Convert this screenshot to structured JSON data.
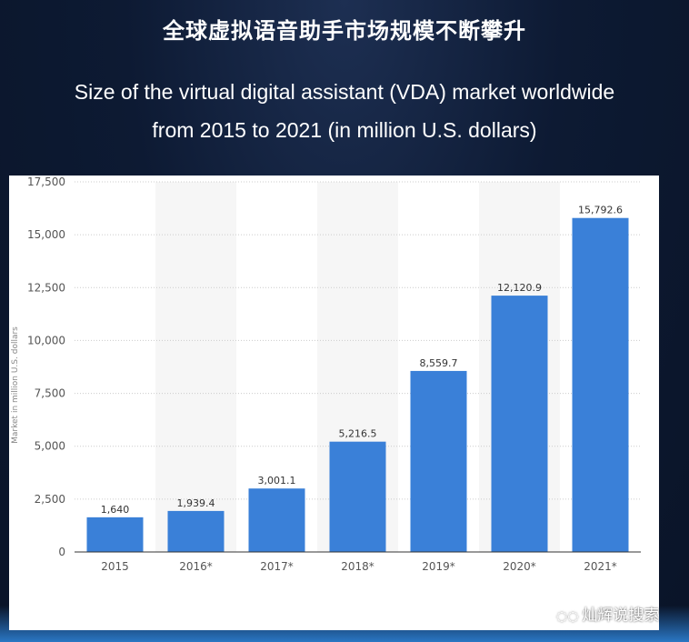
{
  "title_cn": "全球虚拟语音助手市场规模不断攀升",
  "title_en": "Size of the virtual digital assistant (VDA) market worldwide from 2015 to 2021 (in million U.S. dollars)",
  "watermark": "灿辉说搜索",
  "chart_data": {
    "type": "bar",
    "categories": [
      "2015",
      "2016*",
      "2017*",
      "2018*",
      "2019*",
      "2020*",
      "2021*"
    ],
    "values": [
      1640,
      1939.4,
      3001.1,
      5216.5,
      8559.7,
      12120.9,
      15792.6
    ],
    "data_labels": [
      "1,640",
      "1,939.4",
      "3,001.1",
      "5,216.5",
      "8,559.7",
      "12,120.9",
      "15,792.6"
    ],
    "ylabel": "Market in million U.S. dollars",
    "ylim": [
      0,
      17500
    ],
    "yticks": [
      0,
      2500,
      5000,
      7500,
      10000,
      12500,
      15000,
      17500
    ],
    "ytick_labels": [
      "0",
      "2,500",
      "5,000",
      "7,500",
      "10,000",
      "12,500",
      "15,000",
      "17,500"
    ],
    "grid": true,
    "bar_color": "#3a80d8"
  }
}
